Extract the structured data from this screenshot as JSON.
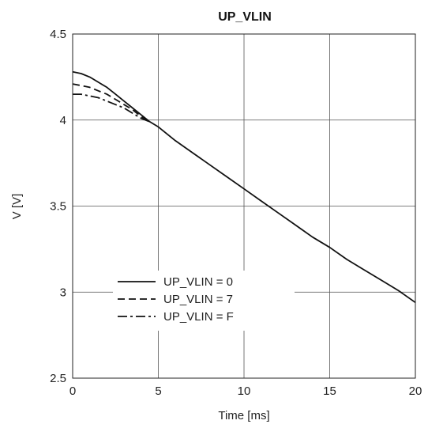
{
  "chart_data": {
    "type": "line",
    "title": "UP_VLIN",
    "xlabel": "Time [ms]",
    "ylabel": "V [V]",
    "xlim": [
      0,
      20
    ],
    "ylim": [
      2.5,
      4.5
    ],
    "xticks": [
      0,
      5,
      10,
      15,
      20
    ],
    "yticks": [
      2.5,
      3,
      3.5,
      4,
      4.5
    ],
    "xtick_labels": [
      "0",
      "5",
      "10",
      "15",
      "20"
    ],
    "ytick_labels": [
      "2.5",
      "3",
      "3.5",
      "4",
      "4.5"
    ],
    "grid": true,
    "legend_position": "lower-left",
    "series": [
      {
        "name": "UP_VLIN = 0",
        "style": "solid",
        "x": [
          0,
          0.5,
          1,
          1.5,
          2,
          2.5,
          3,
          3.5,
          4,
          4.5,
          5,
          6,
          7,
          8,
          9,
          10,
          11,
          12,
          13,
          14,
          15,
          16,
          17,
          18,
          19,
          20
        ],
        "y": [
          4.28,
          4.27,
          4.25,
          4.22,
          4.19,
          4.15,
          4.11,
          4.07,
          4.03,
          3.99,
          3.96,
          3.88,
          3.81,
          3.74,
          3.67,
          3.6,
          3.53,
          3.46,
          3.39,
          3.32,
          3.26,
          3.19,
          3.13,
          3.07,
          3.01,
          2.94
        ]
      },
      {
        "name": "UP_VLIN = 7",
        "style": "dashed",
        "x": [
          0,
          0.5,
          1,
          1.5,
          2,
          2.5,
          3,
          3.5,
          4,
          4.5
        ],
        "y": [
          4.21,
          4.2,
          4.19,
          4.17,
          4.15,
          4.12,
          4.09,
          4.06,
          4.02,
          3.99
        ]
      },
      {
        "name": "UP_VLIN = F",
        "style": "dashdot",
        "x": [
          0,
          0.5,
          1,
          1.5,
          2,
          2.5,
          3,
          3.5,
          4,
          4.5
        ],
        "y": [
          4.15,
          4.15,
          4.14,
          4.13,
          4.11,
          4.09,
          4.07,
          4.04,
          4.01,
          3.99
        ]
      }
    ]
  }
}
